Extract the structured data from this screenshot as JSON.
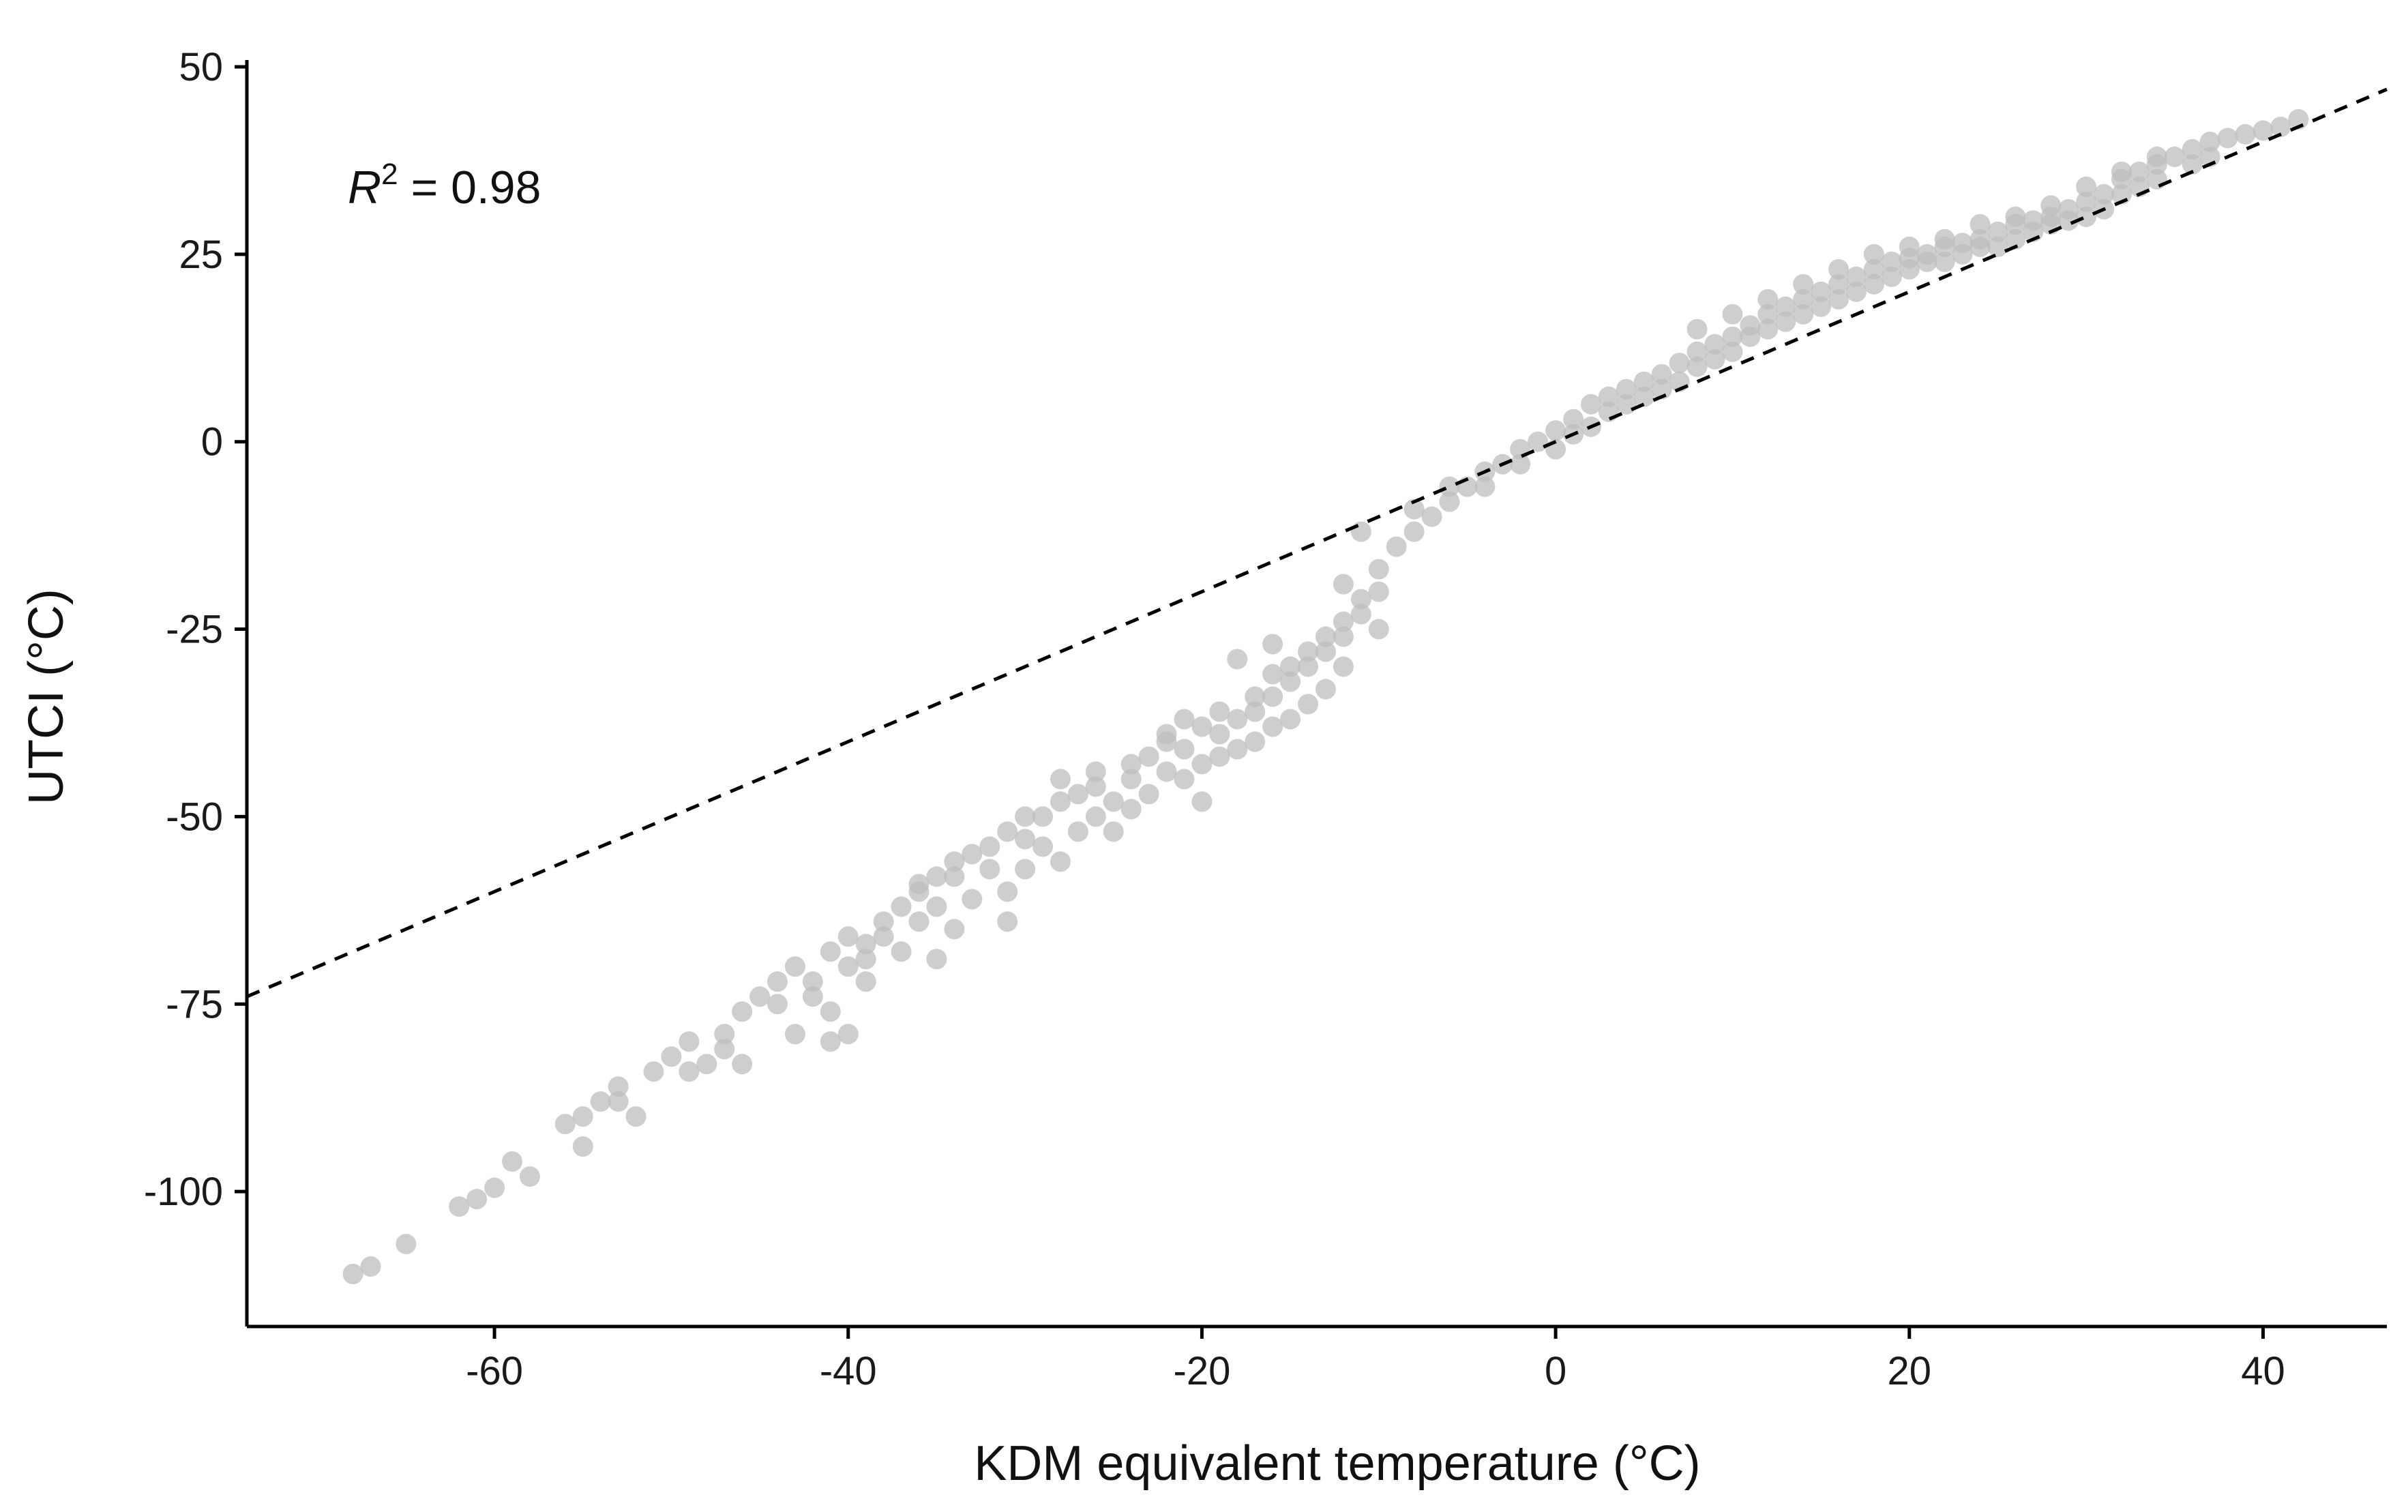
{
  "chart_data": {
    "type": "scatter",
    "title": "",
    "xlabel": "KDM equivalent temperature (°C)",
    "ylabel": "UTCI (°C)",
    "xlim": [
      -74,
      47
    ],
    "ylim": [
      -118,
      50
    ],
    "xticks": [
      -60,
      -40,
      -20,
      0,
      20,
      40
    ],
    "yticks": [
      50,
      25,
      0,
      -25,
      -50,
      -75,
      -100
    ],
    "xtick_labels": [
      "-60",
      "-40",
      "-20",
      "0",
      "20",
      "40"
    ],
    "ytick_labels": [
      "50",
      "25",
      "0",
      "-25",
      "-50",
      "-75",
      "-100"
    ],
    "grid": false,
    "legend": "none",
    "point_color": "#bdbdbd",
    "annotation": {
      "symbol": "R",
      "superscript": "2",
      "text": " = 0.98"
    },
    "reference_line": {
      "style": "dashed",
      "color": "#000000",
      "from": [
        -74,
        -74
      ],
      "to": [
        47,
        47
      ]
    },
    "points": [
      [
        -68,
        -111
      ],
      [
        -67,
        -110
      ],
      [
        -65,
        -107
      ],
      [
        -62,
        -102
      ],
      [
        -61,
        -101
      ],
      [
        -60,
        -99.5
      ],
      [
        -59,
        -96
      ],
      [
        -58,
        -98
      ],
      [
        -56,
        -91
      ],
      [
        -55,
        -94
      ],
      [
        -55,
        -90
      ],
      [
        -54,
        -88
      ],
      [
        -53,
        -86
      ],
      [
        -52,
        -90
      ],
      [
        -51,
        -84
      ],
      [
        -50,
        -82
      ],
      [
        -49,
        -80
      ],
      [
        -48,
        -83
      ],
      [
        -47,
        -79
      ],
      [
        -46,
        -76
      ],
      [
        -45,
        -74
      ],
      [
        -44,
        -72
      ],
      [
        -43,
        -70
      ],
      [
        -42,
        -72
      ],
      [
        -41,
        -68
      ],
      [
        -40,
        -66
      ],
      [
        -39,
        -67
      ],
      [
        -38,
        -64
      ],
      [
        -37,
        -62
      ],
      [
        -36,
        -60
      ],
      [
        -35,
        -58
      ],
      [
        -34,
        -56
      ],
      [
        -33,
        -55
      ],
      [
        -32,
        -54
      ],
      [
        -31,
        -52
      ],
      [
        -30,
        -53
      ],
      [
        -29,
        -50
      ],
      [
        -28,
        -48
      ],
      [
        -27,
        -47
      ],
      [
        -26,
        -46
      ],
      [
        -25,
        -48
      ],
      [
        -24,
        -45
      ],
      [
        -23,
        -42
      ],
      [
        -22,
        -40
      ],
      [
        -21,
        -41
      ],
      [
        -20,
        -38
      ],
      [
        -19,
        -39
      ],
      [
        -18,
        -37
      ],
      [
        -17,
        -36
      ],
      [
        -16,
        -34
      ],
      [
        -15,
        -32
      ],
      [
        -14,
        -30
      ],
      [
        -13,
        -28
      ],
      [
        -12,
        -26
      ],
      [
        -11,
        -21
      ],
      [
        -10,
        -17
      ],
      [
        -9,
        -14
      ],
      [
        -8,
        -12
      ],
      [
        -7,
        -10
      ],
      [
        -6,
        -8
      ],
      [
        -5,
        -6
      ],
      [
        -4,
        -4
      ],
      [
        -3,
        -3
      ],
      [
        -2,
        -1
      ],
      [
        -1,
        0
      ],
      [
        0,
        1.5
      ],
      [
        1,
        3
      ],
      [
        2,
        5
      ],
      [
        3,
        6
      ],
      [
        4,
        7
      ],
      [
        5,
        8
      ],
      [
        6,
        9
      ],
      [
        7,
        10.5
      ],
      [
        8,
        12
      ],
      [
        9,
        13
      ],
      [
        10,
        14
      ],
      [
        11,
        15.5
      ],
      [
        12,
        17
      ],
      [
        13,
        18
      ],
      [
        14,
        19
      ],
      [
        15,
        20
      ],
      [
        16,
        21
      ],
      [
        17,
        22
      ],
      [
        18,
        23
      ],
      [
        19,
        24
      ],
      [
        20,
        24.5
      ],
      [
        21,
        25
      ],
      [
        22,
        26
      ],
      [
        23,
        26.5
      ],
      [
        24,
        27
      ],
      [
        25,
        28
      ],
      [
        26,
        29
      ],
      [
        27,
        29.5
      ],
      [
        28,
        30
      ],
      [
        29,
        31
      ],
      [
        30,
        32
      ],
      [
        31,
        33
      ],
      [
        32,
        35
      ],
      [
        33,
        36
      ],
      [
        34,
        37
      ],
      [
        35,
        38
      ],
      [
        36,
        39
      ],
      [
        37,
        40
      ],
      [
        38,
        40.5
      ],
      [
        39,
        41
      ],
      [
        40,
        41.5
      ],
      [
        41,
        42
      ],
      [
        42,
        43
      ],
      [
        -53,
        -88
      ],
      [
        -49,
        -84
      ],
      [
        -47,
        -81
      ],
      [
        -46,
        -83
      ],
      [
        -44,
        -75
      ],
      [
        -43,
        -79
      ],
      [
        -42,
        -74
      ],
      [
        -41,
        -76
      ],
      [
        -40,
        -70
      ],
      [
        -39,
        -69
      ],
      [
        -38,
        -66
      ],
      [
        -37,
        -68
      ],
      [
        -36,
        -64
      ],
      [
        -35,
        -62
      ],
      [
        -35,
        -69
      ],
      [
        -34,
        -65
      ],
      [
        -33,
        -61
      ],
      [
        -32,
        -57
      ],
      [
        -31,
        -60
      ],
      [
        -30,
        -57
      ],
      [
        -29,
        -54
      ],
      [
        -28,
        -56
      ],
      [
        -27,
        -52
      ],
      [
        -26,
        -50
      ],
      [
        -25,
        -52
      ],
      [
        -24,
        -49
      ],
      [
        -23,
        -47
      ],
      [
        -22,
        -44
      ],
      [
        -21,
        -45
      ],
      [
        -20,
        -43
      ],
      [
        -19,
        -42
      ],
      [
        -18,
        -41
      ],
      [
        -17,
        -40
      ],
      [
        -16,
        -38
      ],
      [
        -15,
        -37
      ],
      [
        -14,
        -35
      ],
      [
        -13,
        -33
      ],
      [
        -12,
        -30
      ],
      [
        -31,
        -64
      ],
      [
        -40,
        -79
      ],
      [
        -20,
        -48
      ],
      [
        -15,
        -30
      ],
      [
        -10,
        -25
      ],
      [
        -12,
        -19
      ],
      [
        -11,
        -12
      ],
      [
        -16,
        -27
      ],
      [
        -18,
        -29
      ],
      [
        -8,
        -9
      ],
      [
        -6,
        -6
      ],
      [
        -4,
        -6
      ],
      [
        -2,
        -3
      ],
      [
        0,
        -1
      ],
      [
        1,
        1
      ],
      [
        2,
        2
      ],
      [
        3,
        4
      ],
      [
        4,
        5
      ],
      [
        5,
        6
      ],
      [
        6,
        7
      ],
      [
        7,
        8
      ],
      [
        8,
        10
      ],
      [
        9,
        11
      ],
      [
        10,
        12
      ],
      [
        11,
        14
      ],
      [
        12,
        15
      ],
      [
        13,
        16
      ],
      [
        14,
        17
      ],
      [
        15,
        18
      ],
      [
        16,
        19
      ],
      [
        17,
        20
      ],
      [
        18,
        21
      ],
      [
        19,
        22
      ],
      [
        20,
        23
      ],
      [
        21,
        24
      ],
      [
        22,
        24
      ],
      [
        23,
        25
      ],
      [
        24,
        26
      ],
      [
        25,
        26
      ],
      [
        26,
        27
      ],
      [
        27,
        28
      ],
      [
        28,
        29
      ],
      [
        29,
        29.5
      ],
      [
        30,
        30
      ],
      [
        31,
        31
      ],
      [
        32,
        33
      ],
      [
        33,
        34
      ],
      [
        34,
        35
      ],
      [
        36,
        37
      ],
      [
        37,
        38
      ],
      [
        8,
        15
      ],
      [
        10,
        17
      ],
      [
        12,
        19
      ],
      [
        14,
        21
      ],
      [
        16,
        23
      ],
      [
        18,
        25
      ],
      [
        20,
        26
      ],
      [
        22,
        27
      ],
      [
        24,
        29
      ],
      [
        26,
        30
      ],
      [
        28,
        31.5
      ],
      [
        30,
        34
      ],
      [
        32,
        36
      ],
      [
        34,
        38
      ],
      [
        -39,
        -72
      ],
      [
        -41,
        -80
      ],
      [
        -36,
        -59
      ],
      [
        -34,
        -58
      ],
      [
        -30,
        -50
      ],
      [
        -28,
        -45
      ],
      [
        -26,
        -44
      ],
      [
        -24,
        -43
      ],
      [
        -22,
        -39
      ],
      [
        -21,
        -37
      ],
      [
        -19,
        -36
      ],
      [
        -17,
        -34
      ],
      [
        -16,
        -31
      ],
      [
        -14,
        -28
      ],
      [
        -13,
        -26
      ],
      [
        -12,
        -24
      ],
      [
        -11,
        -23
      ],
      [
        -10,
        -20
      ]
    ]
  },
  "colors": {
    "points": "#bdbdbd",
    "axis": "#000000",
    "reference_line": "#000000",
    "background": "#ffffff"
  }
}
